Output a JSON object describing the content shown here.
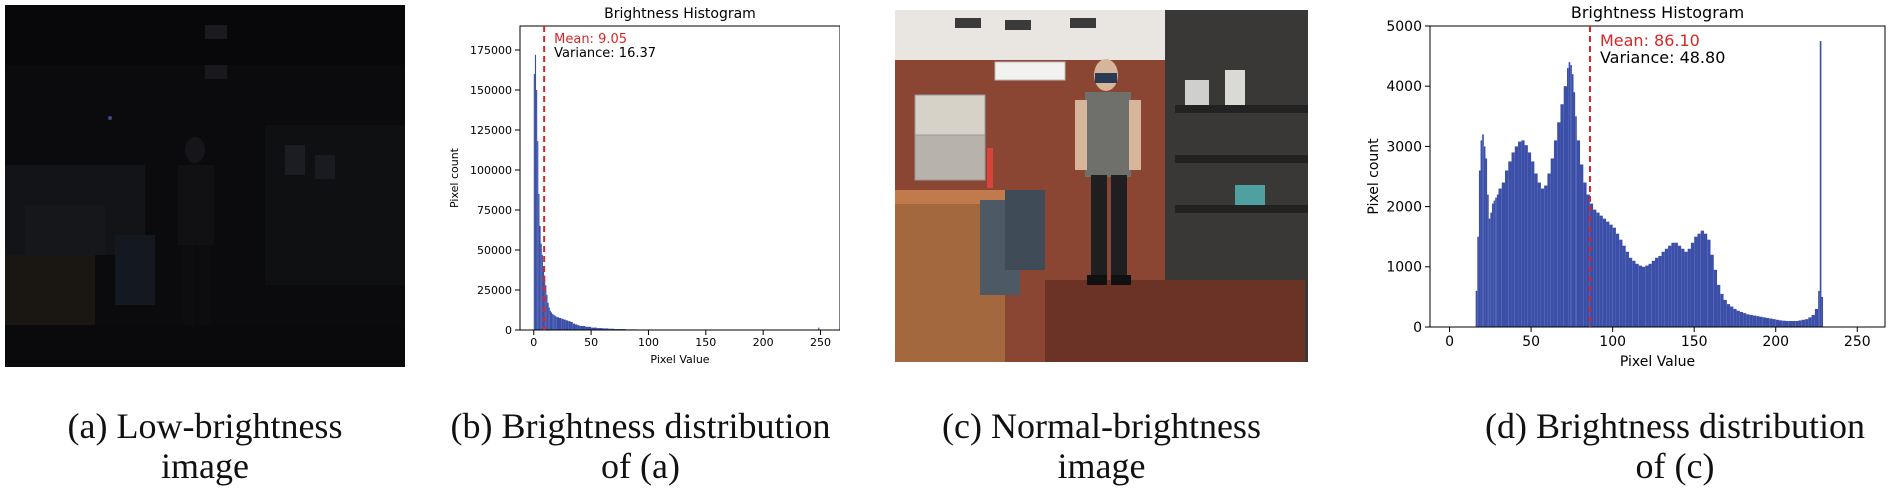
{
  "panels": [
    {
      "id": "a",
      "kind": "photo",
      "scene": "low-brightness",
      "caption_line1": "(a) Low-brightness",
      "caption_line2": "image"
    },
    {
      "id": "b",
      "kind": "histogram",
      "caption_line1": "(b) Brightness distribution",
      "caption_line2": "of (a)"
    },
    {
      "id": "c",
      "kind": "photo",
      "scene": "normal-brightness",
      "caption_line1": "(c) Normal-brightness",
      "caption_line2": "image"
    },
    {
      "id": "d",
      "kind": "histogram",
      "caption_line1": "(d) Brightness distribution",
      "caption_line2": "of (c)"
    }
  ],
  "chart_data": [
    {
      "type": "bar",
      "title": "Brightness Histogram",
      "xlabel": "Pixel Value",
      "ylabel": "Pixel count",
      "xlim": [
        -12,
        267
      ],
      "ylim": [
        0,
        190000
      ],
      "xticks": [
        0,
        50,
        100,
        150,
        200,
        250
      ],
      "yticks": [
        0,
        25000,
        50000,
        75000,
        100000,
        125000,
        150000,
        175000
      ],
      "bar_color": "#3b4fa8",
      "grid": false,
      "mean_line": {
        "x": 9.05,
        "color": "#d62728",
        "style": "dashed"
      },
      "annotations": [
        {
          "text": "Mean: 9.05",
          "color": "#d62728"
        },
        {
          "text": "Variance: 16.37",
          "color": "#000000"
        }
      ],
      "bins": [
        [
          0,
          160000
        ],
        [
          1,
          172000
        ],
        [
          2,
          150000
        ],
        [
          3,
          118000
        ],
        [
          4,
          85000
        ],
        [
          5,
          65000
        ],
        [
          6,
          54000
        ],
        [
          7,
          47000
        ],
        [
          8,
          40000
        ],
        [
          9,
          34000
        ],
        [
          10,
          28000
        ],
        [
          11,
          22000
        ],
        [
          12,
          17000
        ],
        [
          13,
          14000
        ],
        [
          14,
          12000
        ],
        [
          15,
          11000
        ],
        [
          16,
          10000
        ],
        [
          17,
          9500
        ],
        [
          18,
          9000
        ],
        [
          19,
          8500
        ],
        [
          20,
          8000
        ],
        [
          22,
          7500
        ],
        [
          24,
          7000
        ],
        [
          26,
          6500
        ],
        [
          28,
          6000
        ],
        [
          30,
          5500
        ],
        [
          32,
          5000
        ],
        [
          34,
          4000
        ],
        [
          36,
          3500
        ],
        [
          38,
          3000
        ],
        [
          40,
          2500
        ],
        [
          45,
          2000
        ],
        [
          50,
          1500
        ],
        [
          55,
          1200
        ],
        [
          60,
          1000
        ],
        [
          65,
          800
        ],
        [
          70,
          600
        ],
        [
          80,
          400
        ],
        [
          90,
          300
        ],
        [
          100,
          200
        ],
        [
          120,
          150
        ],
        [
          150,
          100
        ],
        [
          200,
          80
        ],
        [
          248,
          1500
        ]
      ]
    },
    {
      "type": "bar",
      "title": "Brightness Histogram",
      "xlabel": "Pixel Value",
      "ylabel": "Pixel count",
      "xlim": [
        -12,
        267
      ],
      "ylim": [
        0,
        5000
      ],
      "xticks": [
        0,
        50,
        100,
        150,
        200,
        250
      ],
      "yticks": [
        0,
        1000,
        2000,
        3000,
        4000,
        5000
      ],
      "bar_color": "#3b4fa8",
      "grid": false,
      "mean_line": {
        "x": 86.1,
        "color": "#d62728",
        "style": "dashed"
      },
      "annotations": [
        {
          "text": "Mean: 86.10",
          "color": "#d62728"
        },
        {
          "text": "Variance: 48.80",
          "color": "#000000"
        }
      ],
      "bins": [
        [
          16,
          600
        ],
        [
          17,
          1500
        ],
        [
          18,
          2600
        ],
        [
          19,
          3100
        ],
        [
          20,
          3200
        ],
        [
          21,
          3000
        ],
        [
          22,
          2800
        ],
        [
          23,
          2200
        ],
        [
          24,
          1800
        ],
        [
          25,
          1900
        ],
        [
          26,
          2050
        ],
        [
          27,
          2100
        ],
        [
          28,
          2150
        ],
        [
          29,
          2200
        ],
        [
          30,
          2300
        ],
        [
          32,
          2400
        ],
        [
          34,
          2600
        ],
        [
          36,
          2750
        ],
        [
          38,
          2900
        ],
        [
          40,
          3000
        ],
        [
          42,
          3080
        ],
        [
          44,
          3100
        ],
        [
          46,
          3020
        ],
        [
          48,
          2900
        ],
        [
          50,
          2750
        ],
        [
          52,
          2550
        ],
        [
          54,
          2400
        ],
        [
          56,
          2300
        ],
        [
          58,
          2350
        ],
        [
          60,
          2550
        ],
        [
          62,
          2800
        ],
        [
          64,
          3100
        ],
        [
          66,
          3400
        ],
        [
          68,
          3700
        ],
        [
          70,
          4000
        ],
        [
          72,
          4300
        ],
        [
          73,
          4400
        ],
        [
          74,
          4350
        ],
        [
          75,
          4200
        ],
        [
          76,
          3900
        ],
        [
          77,
          3500
        ],
        [
          78,
          3100
        ],
        [
          80,
          2700
        ],
        [
          82,
          2400
        ],
        [
          84,
          2200
        ],
        [
          86,
          2050
        ],
        [
          88,
          1950
        ],
        [
          90,
          1900
        ],
        [
          92,
          1850
        ],
        [
          94,
          1800
        ],
        [
          96,
          1750
        ],
        [
          98,
          1700
        ],
        [
          100,
          1650
        ],
        [
          102,
          1550
        ],
        [
          104,
          1450
        ],
        [
          106,
          1350
        ],
        [
          108,
          1250
        ],
        [
          110,
          1150
        ],
        [
          112,
          1100
        ],
        [
          114,
          1050
        ],
        [
          116,
          1020
        ],
        [
          118,
          1000
        ],
        [
          120,
          1020
        ],
        [
          122,
          1050
        ],
        [
          124,
          1100
        ],
        [
          126,
          1150
        ],
        [
          128,
          1180
        ],
        [
          130,
          1250
        ],
        [
          132,
          1300
        ],
        [
          134,
          1350
        ],
        [
          136,
          1400
        ],
        [
          138,
          1400
        ],
        [
          140,
          1350
        ],
        [
          142,
          1300
        ],
        [
          144,
          1250
        ],
        [
          146,
          1300
        ],
        [
          148,
          1400
        ],
        [
          150,
          1500
        ],
        [
          152,
          1550
        ],
        [
          154,
          1600
        ],
        [
          156,
          1550
        ],
        [
          158,
          1450
        ],
        [
          160,
          1200
        ],
        [
          162,
          950
        ],
        [
          164,
          700
        ],
        [
          166,
          550
        ],
        [
          168,
          450
        ],
        [
          170,
          380
        ],
        [
          172,
          340
        ],
        [
          174,
          300
        ],
        [
          176,
          270
        ],
        [
          178,
          250
        ],
        [
          180,
          230
        ],
        [
          182,
          210
        ],
        [
          184,
          200
        ],
        [
          186,
          190
        ],
        [
          188,
          180
        ],
        [
          190,
          170
        ],
        [
          192,
          160
        ],
        [
          194,
          150
        ],
        [
          196,
          140
        ],
        [
          198,
          130
        ],
        [
          200,
          120
        ],
        [
          202,
          110
        ],
        [
          204,
          105
        ],
        [
          206,
          100
        ],
        [
          208,
          100
        ],
        [
          210,
          100
        ],
        [
          212,
          100
        ],
        [
          214,
          110
        ],
        [
          216,
          120
        ],
        [
          218,
          130
        ],
        [
          220,
          160
        ],
        [
          222,
          200
        ],
        [
          224,
          300
        ],
        [
          226,
          600
        ],
        [
          227,
          4750
        ],
        [
          228,
          500
        ]
      ]
    }
  ]
}
